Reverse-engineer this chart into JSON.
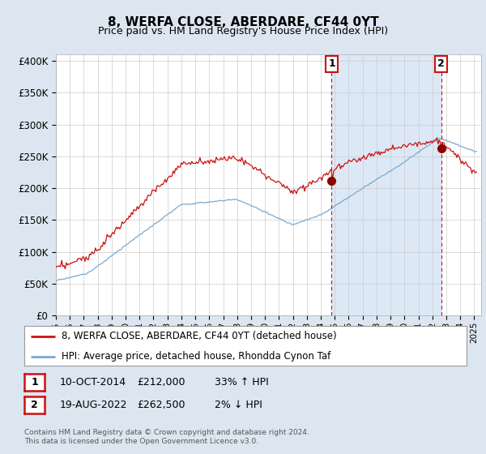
{
  "title": "8, WERFA CLOSE, ABERDARE, CF44 0YT",
  "subtitle": "Price paid vs. HM Land Registry's House Price Index (HPI)",
  "ylabel_ticks": [
    "£0",
    "£50K",
    "£100K",
    "£150K",
    "£200K",
    "£250K",
    "£300K",
    "£350K",
    "£400K"
  ],
  "ytick_values": [
    0,
    50000,
    100000,
    150000,
    200000,
    250000,
    300000,
    350000,
    400000
  ],
  "ylim": [
    0,
    410000
  ],
  "xlim_start": 1995.0,
  "xlim_end": 2025.5,
  "hpi_color": "#7aaad0",
  "price_color": "#cc1111",
  "shade_color": "#dce8f5",
  "marker1_date": 2014.78,
  "marker1_price": 212000,
  "marker2_date": 2022.63,
  "marker2_price": 262500,
  "legend_house": "8, WERFA CLOSE, ABERDARE, CF44 0YT (detached house)",
  "legend_hpi": "HPI: Average price, detached house, Rhondda Cynon Taf",
  "annotation1_date": "10-OCT-2014",
  "annotation1_price": "£212,000",
  "annotation1_hpi": "33% ↑ HPI",
  "annotation2_date": "19-AUG-2022",
  "annotation2_price": "£262,500",
  "annotation2_hpi": "2% ↓ HPI",
  "footer": "Contains HM Land Registry data © Crown copyright and database right 2024.\nThis data is licensed under the Open Government Licence v3.0.",
  "background_color": "#dce6f0",
  "plot_bg_color": "#ffffff",
  "grid_color": "#cccccc"
}
